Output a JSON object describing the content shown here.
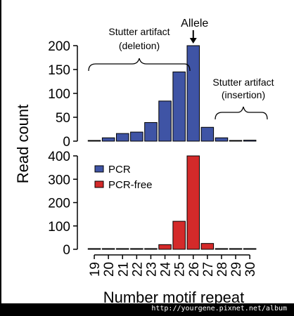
{
  "chart_data": {
    "type": "bar",
    "ylabel": "Read count",
    "xlabel": "Number motif repeat",
    "categories": [
      "19",
      "20",
      "21",
      "22",
      "23",
      "24",
      "25",
      "26",
      "27",
      "28",
      "29",
      "30"
    ],
    "panels": [
      {
        "id": "top",
        "ylim": [
          0,
          200
        ],
        "yticks": [
          "0",
          "50",
          "100",
          "150",
          "200"
        ],
        "series": [
          {
            "values": [
              1,
              7,
              16,
              19,
              39,
              84,
              145,
              200,
              29,
              7,
              1,
              2
            ],
            "color": "#3f54a5"
          }
        ],
        "annotations": {
          "allele": "Allele",
          "stutter_deletion": [
            "Stutter artifact",
            "(deletion)"
          ],
          "stutter_insertion": [
            "Stutter artifact",
            "(insertion)"
          ]
        }
      },
      {
        "id": "bottom",
        "ylim": [
          0,
          400
        ],
        "yticks": [
          "0",
          "100",
          "200",
          "300",
          "400"
        ],
        "series": [
          {
            "name": "PCR",
            "values": [
              1,
              2,
              3,
              3,
              3,
              20,
              120,
              400,
              25,
              3,
              2,
              1
            ],
            "color": "#3f54a5",
            "visible": false
          },
          {
            "name": "PCR-free",
            "values": [
              1,
              2,
              3,
              3,
              3,
              20,
              120,
              400,
              25,
              3,
              2,
              1
            ],
            "color": "#d42a2a"
          }
        ],
        "legend": [
          {
            "label": "PCR",
            "color": "#3f54a5"
          },
          {
            "label": "PCR-free",
            "color": "#d42a2a"
          }
        ],
        "legend_position": "top-left"
      }
    ]
  },
  "watermark": "http://yourgene.pixnet.net/album"
}
